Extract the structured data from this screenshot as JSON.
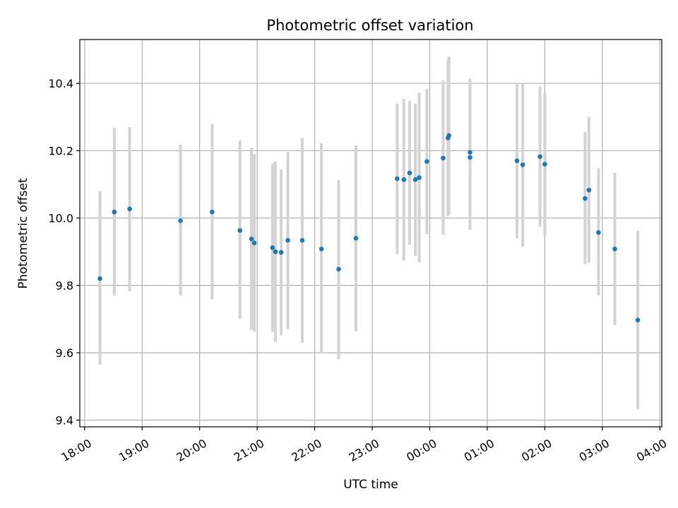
{
  "chart_data": {
    "type": "scatter",
    "title": "Photometric offset variation",
    "xlabel": "UTC time",
    "ylabel": "Photometric offset",
    "x_axis_kind": "time",
    "xlim": [
      "17:55",
      "04:02"
    ],
    "ylim": [
      9.38,
      10.53
    ],
    "x_ticks": [
      "18:00",
      "19:00",
      "20:00",
      "21:00",
      "22:00",
      "23:00",
      "00:00",
      "01:00",
      "02:00",
      "03:00",
      "04:00"
    ],
    "y_ticks": [
      "9.4",
      "9.6",
      "9.8",
      "10.0",
      "10.2",
      "10.4"
    ],
    "grid": true,
    "marker_color": "#1f77b4",
    "errorbar_color": "#d3d3d3",
    "points": [
      {
        "time": "18:16",
        "y": 9.82,
        "err_low": 9.565,
        "err_high": 10.08
      },
      {
        "time": "18:31",
        "y": 10.018,
        "err_low": 9.77,
        "err_high": 10.268
      },
      {
        "time": "18:47",
        "y": 10.027,
        "err_low": 9.783,
        "err_high": 10.27
      },
      {
        "time": "19:40",
        "y": 9.992,
        "err_low": 9.77,
        "err_high": 10.218
      },
      {
        "time": "20:13",
        "y": 10.018,
        "err_low": 9.758,
        "err_high": 10.28
      },
      {
        "time": "20:42",
        "y": 9.963,
        "err_low": 9.7,
        "err_high": 10.23
      },
      {
        "time": "20:54",
        "y": 9.938,
        "err_low": 9.668,
        "err_high": 10.208
      },
      {
        "time": "20:57",
        "y": 9.926,
        "err_low": 9.662,
        "err_high": 10.19
      },
      {
        "time": "21:16",
        "y": 9.912,
        "err_low": 9.662,
        "err_high": 10.162
      },
      {
        "time": "21:19",
        "y": 9.9,
        "err_low": 9.632,
        "err_high": 10.168
      },
      {
        "time": "21:25",
        "y": 9.898,
        "err_low": 9.652,
        "err_high": 10.144
      },
      {
        "time": "21:32",
        "y": 9.934,
        "err_low": 9.67,
        "err_high": 10.196
      },
      {
        "time": "21:47",
        "y": 9.934,
        "err_low": 9.63,
        "err_high": 10.238
      },
      {
        "time": "22:07",
        "y": 9.908,
        "err_low": 9.598,
        "err_high": 10.222
      },
      {
        "time": "22:25",
        "y": 9.848,
        "err_low": 9.582,
        "err_high": 10.112
      },
      {
        "time": "22:43",
        "y": 9.94,
        "err_low": 9.664,
        "err_high": 10.216
      },
      {
        "time": "23:26",
        "y": 10.117,
        "err_low": 9.893,
        "err_high": 10.34
      },
      {
        "time": "23:33",
        "y": 10.114,
        "err_low": 9.873,
        "err_high": 10.354
      },
      {
        "time": "23:39",
        "y": 10.134,
        "err_low": 9.92,
        "err_high": 10.348
      },
      {
        "time": "23:45",
        "y": 10.114,
        "err_low": 9.888,
        "err_high": 10.34
      },
      {
        "time": "23:49",
        "y": 10.12,
        "err_low": 9.868,
        "err_high": 10.372
      },
      {
        "time": "23:57",
        "y": 10.168,
        "err_low": 9.952,
        "err_high": 10.384
      },
      {
        "time": "00:14",
        "y": 10.178,
        "err_low": 9.95,
        "err_high": 10.408
      },
      {
        "time": "00:19",
        "y": 10.238,
        "err_low": 10.005,
        "err_high": 10.47
      },
      {
        "time": "00:20",
        "y": 10.245,
        "err_low": 10.01,
        "err_high": 10.48
      },
      {
        "time": "00:42",
        "y": 10.18,
        "err_low": 9.965,
        "err_high": 10.414
      },
      {
        "time": "00:42",
        "y": 10.195,
        "err_low": 9.968,
        "err_high": 10.4
      },
      {
        "time": "01:31",
        "y": 10.17,
        "err_low": 9.94,
        "err_high": 10.4
      },
      {
        "time": "01:37",
        "y": 10.158,
        "err_low": 9.915,
        "err_high": 10.398
      },
      {
        "time": "01:55",
        "y": 10.182,
        "err_low": 9.975,
        "err_high": 10.39
      },
      {
        "time": "02:00",
        "y": 10.16,
        "err_low": 9.948,
        "err_high": 10.37
      },
      {
        "time": "02:42",
        "y": 10.058,
        "err_low": 9.863,
        "err_high": 10.255
      },
      {
        "time": "02:46",
        "y": 10.083,
        "err_low": 9.867,
        "err_high": 10.3
      },
      {
        "time": "02:56",
        "y": 9.957,
        "err_low": 9.77,
        "err_high": 10.148
      },
      {
        "time": "03:13",
        "y": 9.908,
        "err_low": 9.682,
        "err_high": 10.134
      },
      {
        "time": "03:37",
        "y": 9.697,
        "err_low": 9.432,
        "err_high": 9.962
      }
    ]
  }
}
